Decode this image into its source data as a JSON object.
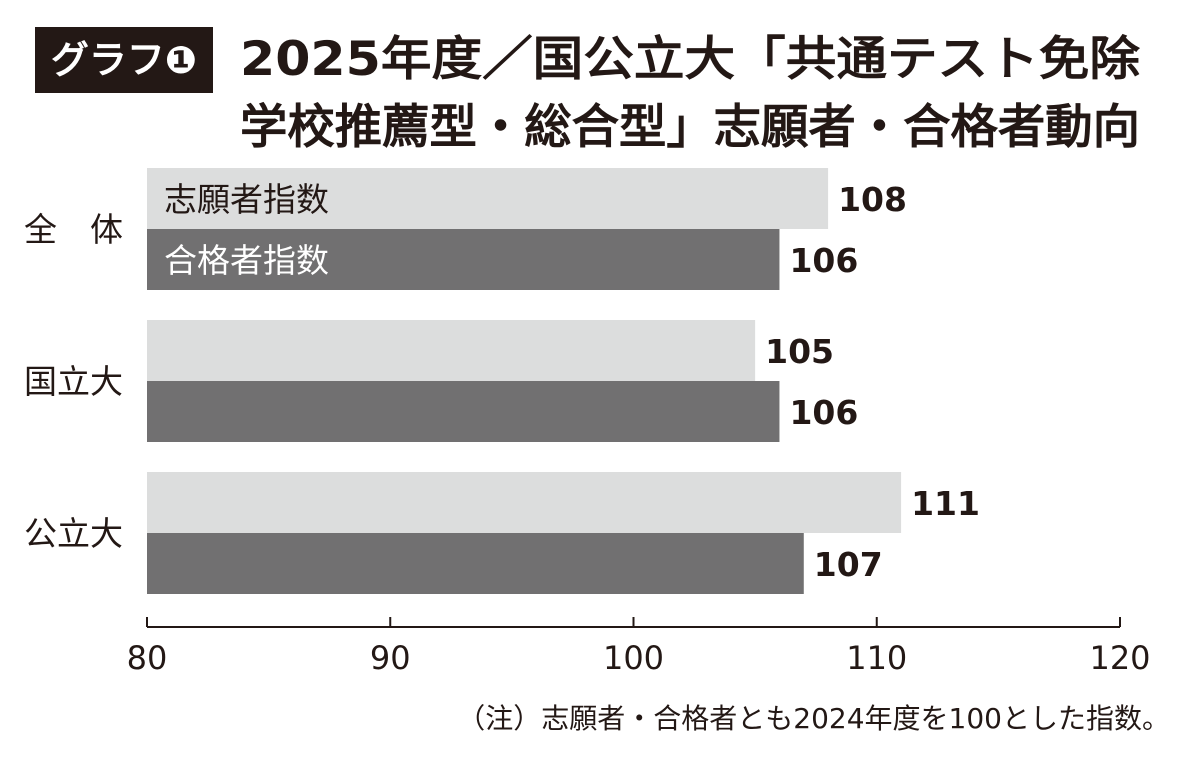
{
  "header": {
    "badge": "グラフ❶",
    "title_line1": "2025年度／国公立大「共通テスト免除",
    "title_line2": "学校推薦型・総合型」志願者・合格者動向"
  },
  "note": "（注）志願者・合格者とも2024年度を100とした指数。",
  "colors": {
    "badge_bg": "#231815",
    "badge_text": "#ffffff",
    "applicant_bar": "#dcdddd",
    "passer_bar": "#717071",
    "text": "#231815"
  },
  "chart_data": {
    "type": "bar",
    "orientation": "horizontal",
    "categories": [
      "全　体",
      "国立大",
      "公立大"
    ],
    "series": [
      {
        "name": "志願者指数",
        "values": [
          108,
          105,
          111
        ]
      },
      {
        "name": "合格者指数",
        "values": [
          106,
          106,
          107
        ]
      }
    ],
    "xlim": [
      80,
      120
    ],
    "xticks": [
      80,
      90,
      100,
      110,
      120
    ],
    "title": "2025年度／国公立大「共通テスト免除学校推薦型・総合型」志願者・合格者動向",
    "xlabel": "",
    "ylabel": "",
    "legend": "inside first bars",
    "grid": false
  }
}
